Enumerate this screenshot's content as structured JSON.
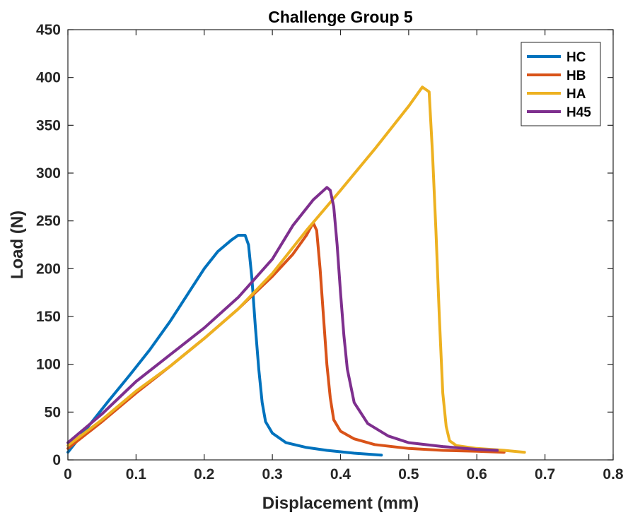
{
  "chart_data": {
    "type": "line",
    "title": "Challenge Group 5",
    "xlabel": "Displacement (mm)",
    "ylabel": "Load (N)",
    "xlim": [
      0,
      0.8
    ],
    "ylim": [
      0,
      450
    ],
    "xticks": [
      0,
      0.1,
      0.2,
      0.3,
      0.4,
      0.5,
      0.6,
      0.7,
      0.8
    ],
    "xtick_labels": [
      "0",
      "0.1",
      "0.2",
      "0.3",
      "0.4",
      "0.5",
      "0.6",
      "0.7",
      "0.8"
    ],
    "yticks": [
      0,
      50,
      100,
      150,
      200,
      250,
      300,
      350,
      400,
      450
    ],
    "ytick_labels": [
      "0",
      "50",
      "100",
      "150",
      "200",
      "250",
      "300",
      "350",
      "400",
      "450"
    ],
    "grid": false,
    "legend_position": "top-right",
    "series": [
      {
        "name": "HC",
        "color": "#0072BD",
        "x": [
          0,
          0.03,
          0.06,
          0.09,
          0.12,
          0.15,
          0.18,
          0.2,
          0.22,
          0.24,
          0.25,
          0.26,
          0.265,
          0.27,
          0.275,
          0.28,
          0.285,
          0.29,
          0.3,
          0.32,
          0.35,
          0.38,
          0.42,
          0.46
        ],
        "y": [
          8,
          35,
          62,
          88,
          115,
          145,
          178,
          200,
          218,
          230,
          235,
          235,
          225,
          190,
          140,
          95,
          60,
          40,
          28,
          18,
          13,
          10,
          7,
          5
        ]
      },
      {
        "name": "HB",
        "color": "#D95319",
        "x": [
          0,
          0.05,
          0.1,
          0.15,
          0.2,
          0.25,
          0.3,
          0.33,
          0.35,
          0.36,
          0.365,
          0.37,
          0.375,
          0.38,
          0.385,
          0.39,
          0.4,
          0.42,
          0.45,
          0.5,
          0.55,
          0.6,
          0.64
        ],
        "y": [
          12,
          40,
          70,
          98,
          127,
          158,
          192,
          215,
          235,
          248,
          240,
          200,
          150,
          100,
          65,
          42,
          30,
          22,
          16,
          12,
          10,
          9,
          8
        ]
      },
      {
        "name": "HA",
        "color": "#EDB120",
        "x": [
          0,
          0.05,
          0.1,
          0.15,
          0.2,
          0.25,
          0.3,
          0.35,
          0.4,
          0.45,
          0.5,
          0.52,
          0.53,
          0.535,
          0.54,
          0.545,
          0.55,
          0.555,
          0.56,
          0.57,
          0.6,
          0.64,
          0.67
        ],
        "y": [
          15,
          42,
          72,
          98,
          127,
          158,
          195,
          240,
          282,
          325,
          370,
          390,
          385,
          320,
          240,
          150,
          70,
          35,
          20,
          15,
          12,
          10,
          8
        ]
      },
      {
        "name": "H45",
        "color": "#7E2F8E",
        "x": [
          0,
          0.05,
          0.1,
          0.15,
          0.2,
          0.25,
          0.3,
          0.33,
          0.36,
          0.38,
          0.385,
          0.39,
          0.395,
          0.4,
          0.405,
          0.41,
          0.42,
          0.44,
          0.47,
          0.5,
          0.55,
          0.6,
          0.63
        ],
        "y": [
          18,
          48,
          82,
          110,
          138,
          170,
          210,
          245,
          272,
          285,
          282,
          265,
          225,
          175,
          130,
          95,
          60,
          38,
          25,
          18,
          14,
          11,
          10
        ]
      }
    ]
  }
}
